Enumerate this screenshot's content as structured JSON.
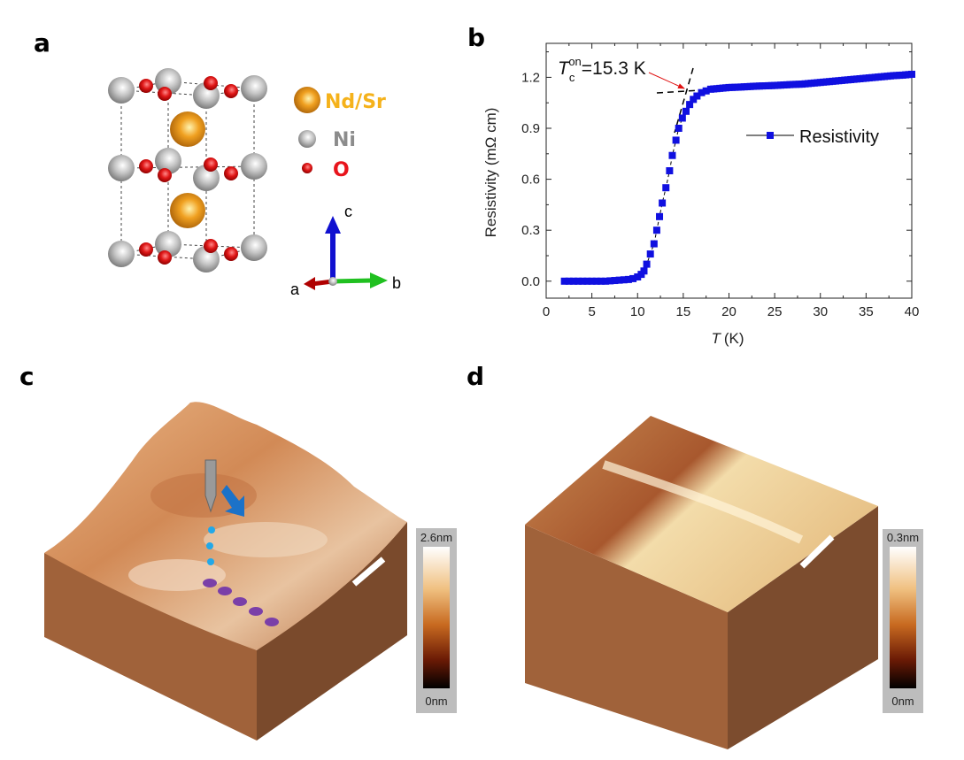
{
  "panels": {
    "a": {
      "label": "a",
      "legend": [
        {
          "name": "Nd/Sr",
          "color": "#F5B21B"
        },
        {
          "name": "Ni",
          "color": "#8C8C8C"
        },
        {
          "name": "O",
          "color": "#E8141C"
        }
      ],
      "axes": {
        "a": "a",
        "b": "b",
        "c": "c"
      }
    },
    "b": {
      "label": "b"
    },
    "c": {
      "label": "c",
      "colorbar": {
        "max": "2.6nm",
        "min": "0nm"
      }
    },
    "d": {
      "label": "d",
      "colorbar": {
        "max": "0.3nm",
        "min": "0nm"
      }
    }
  },
  "chart_data": {
    "type": "scatter",
    "xlabel_italic": "T",
    "xlabel_unit": "(K)",
    "ylabel": "Resistivity (mΩ cm)",
    "xlim": [
      0,
      40
    ],
    "ylim": [
      -0.1,
      1.4
    ],
    "x_ticks": [
      "0",
      "5",
      "10",
      "15",
      "20",
      "25",
      "30",
      "35",
      "40"
    ],
    "y_ticks": [
      "0.0",
      "0.3",
      "0.6",
      "0.9",
      "1.2"
    ],
    "legend": {
      "label": "Resistivity",
      "placement": "right-middle"
    },
    "series_color": "#1010E0",
    "annotation": {
      "T": "T",
      "sub": "c",
      "sup": "on",
      "text": "=15.3 K",
      "tc": 15.3
    },
    "series": [
      {
        "name": "Resistivity",
        "x": [
          2,
          2.5,
          3,
          3.5,
          4,
          4.5,
          5,
          5.5,
          6,
          6.5,
          7,
          7.5,
          8,
          8.5,
          9,
          9.5,
          10,
          10.4,
          10.7,
          11,
          11.4,
          11.8,
          12.1,
          12.4,
          12.7,
          13.1,
          13.5,
          13.8,
          14.2,
          14.5,
          14.9,
          15.3,
          15.7,
          16.1,
          16.5,
          17,
          17.5,
          18,
          19,
          20,
          21,
          22,
          23,
          24,
          25,
          26,
          27,
          28,
          29,
          30,
          31,
          32,
          33,
          34,
          35,
          36,
          37,
          38,
          39,
          40
        ],
        "y": [
          0,
          0,
          0,
          0,
          0,
          0,
          0,
          0,
          0,
          0,
          0.002,
          0.004,
          0.006,
          0.008,
          0.01,
          0.015,
          0.025,
          0.04,
          0.06,
          0.1,
          0.16,
          0.22,
          0.3,
          0.38,
          0.46,
          0.55,
          0.65,
          0.74,
          0.83,
          0.9,
          0.96,
          1.0,
          1.04,
          1.07,
          1.09,
          1.11,
          1.12,
          1.13,
          1.135,
          1.14,
          1.142,
          1.145,
          1.148,
          1.15,
          1.152,
          1.155,
          1.158,
          1.16,
          1.165,
          1.17,
          1.175,
          1.18,
          1.185,
          1.19,
          1.195,
          1.2,
          1.205,
          1.21,
          1.213,
          1.218
        ]
      }
    ]
  }
}
